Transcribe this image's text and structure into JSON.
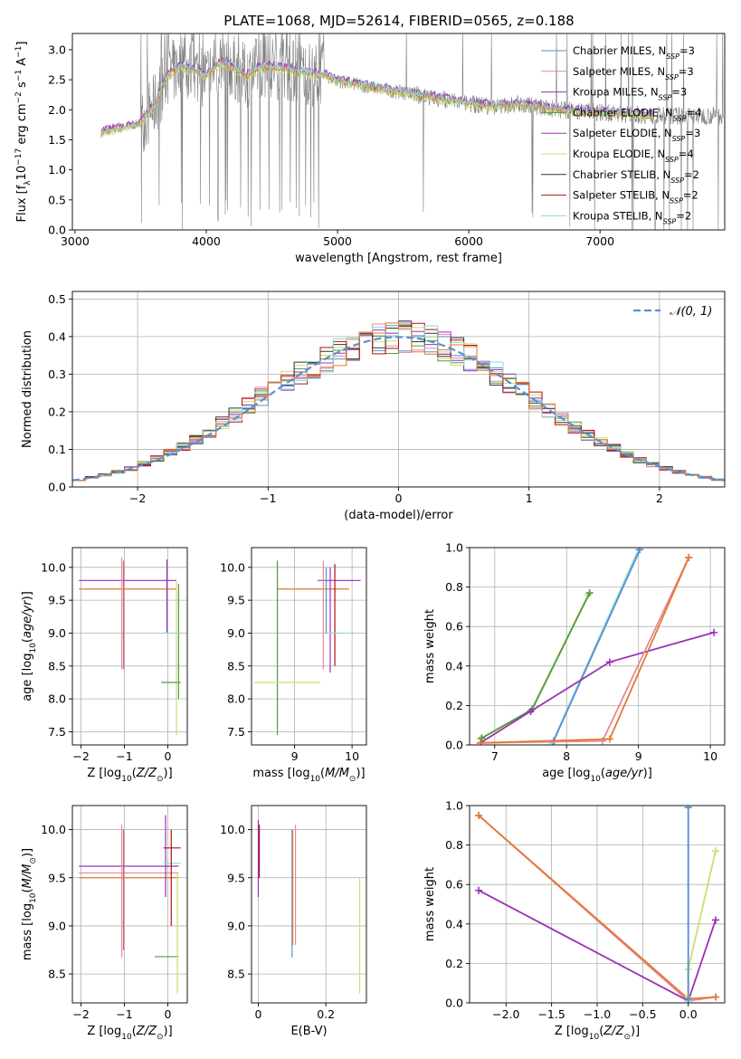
{
  "figure_title": "PLATE=1068, MJD=52614, FIBERID=0565, z=0.188",
  "colors": {
    "chabrier_miles": "#5b8fd1",
    "salpeter_miles": "#e8889a",
    "kroupa_miles": "#9b30b8",
    "chabrier_elodie": "#4f9a46",
    "salpeter_elodie": "#9b30b8",
    "kroupa_elodie": "#c8e070",
    "chabrier_stelib": "#333333",
    "salpeter_stelib": "#b01010",
    "kroupa_stelib": "#8fd8d8",
    "data": "#808080",
    "orange": "#e07a30"
  },
  "chart_data": [
    {
      "id": "spectrum",
      "type": "line",
      "title": "PLATE=1068, MJD=52614, FIBERID=0565, z=0.188",
      "xlabel": "wavelength [Angstrom, rest frame]",
      "ylabel": "Flux [f_λ 10^-17 erg cm^-2 s^-1 A^-1]",
      "ylabel_parts": {
        "a": "Flux [f",
        "sub": "λ",
        "b": "10",
        "sup1": "−17",
        "c": " erg cm",
        "sup2": "−2",
        "d": " s",
        "sup3": "−1",
        "e": " A",
        "sup4": "−1",
        "f": "]"
      },
      "xlim": [
        2980,
        7950
      ],
      "ylim": [
        0.0,
        3.27
      ],
      "xticks": [
        3000,
        4000,
        5000,
        6000,
        7000
      ],
      "yticks": [
        0.0,
        0.5,
        1.0,
        1.5,
        2.0,
        2.5,
        3.0
      ],
      "legend_position": "upper-right",
      "legend": [
        {
          "label": "Chabrier MILES, N",
          "sub": "SSP",
          "eq": "=3",
          "color": "#5b8fd1"
        },
        {
          "label": "Salpeter MILES, N",
          "sub": "SSP",
          "eq": "=3",
          "color": "#e8889a"
        },
        {
          "label": "Kroupa MILES, N",
          "sub": "SSP",
          "eq": "=3",
          "color": "#9b30b8"
        },
        {
          "label": "Chabrier ELODIE, N",
          "sub": "SSP",
          "eq": "=4",
          "color": "#4f9a46"
        },
        {
          "label": "Salpeter ELODIE, N",
          "sub": "SSP",
          "eq": "=3",
          "color": "#9b30b8"
        },
        {
          "label": "Kroupa ELODIE, N",
          "sub": "SSP",
          "eq": "=4",
          "color": "#c8e070"
        },
        {
          "label": "Chabrier STELIB, N",
          "sub": "SSP",
          "eq": "=2",
          "color": "#333333"
        },
        {
          "label": "Salpeter STELIB, N",
          "sub": "SSP",
          "eq": "=2",
          "color": "#b01010"
        },
        {
          "label": "Kroupa STELIB, N",
          "sub": "SSP",
          "eq": "=2",
          "color": "#8fd8d8"
        }
      ],
      "model_continuum": [
        [
          3200,
          1.62
        ],
        [
          3300,
          1.68
        ],
        [
          3400,
          1.72
        ],
        [
          3500,
          1.78
        ],
        [
          3600,
          2.05
        ],
        [
          3700,
          2.55
        ],
        [
          3800,
          2.72
        ],
        [
          3900,
          2.65
        ],
        [
          4000,
          2.55
        ],
        [
          4100,
          2.78
        ],
        [
          4200,
          2.72
        ],
        [
          4300,
          2.55
        ],
        [
          4400,
          2.7
        ],
        [
          4500,
          2.72
        ],
        [
          4600,
          2.68
        ],
        [
          4700,
          2.62
        ],
        [
          4800,
          2.6
        ],
        [
          4900,
          2.58
        ],
        [
          5000,
          2.48
        ],
        [
          5200,
          2.4
        ],
        [
          5400,
          2.32
        ],
        [
          5600,
          2.25
        ],
        [
          5800,
          2.18
        ],
        [
          6000,
          2.1
        ],
        [
          6200,
          2.05
        ],
        [
          6400,
          2.1
        ],
        [
          6600,
          2.02
        ],
        [
          6800,
          1.98
        ],
        [
          7000,
          1.95
        ],
        [
          7200,
          1.93
        ],
        [
          7400,
          1.9
        ]
      ]
    },
    {
      "id": "residuals",
      "type": "histogram",
      "xlabel": "(data-model)/error",
      "ylabel": "Normed distribution",
      "xlim": [
        -2.5,
        2.5
      ],
      "ylim": [
        0.0,
        0.52
      ],
      "xticks": [
        -2,
        -1,
        0,
        1,
        2
      ],
      "yticks": [
        0.0,
        0.1,
        0.2,
        0.3,
        0.4,
        0.5
      ],
      "legend": [
        {
          "label": "𝒩(0, 1)",
          "color": "#5b8fd1",
          "style": "dashed"
        }
      ],
      "legend_position": "upper-right",
      "bin_width": 0.1
    },
    {
      "id": "age-vs-Z",
      "type": "errorbar",
      "xlabel": "Z [log10(Z/Z⊙)]",
      "ylabel": "age [log10(age/yr)]",
      "xlim": [
        -2.2,
        0.45
      ],
      "ylim": [
        7.3,
        10.3
      ],
      "xticks": [
        -2,
        -1,
        0
      ],
      "yticks": [
        7.5,
        8.0,
        8.5,
        9.0,
        9.5,
        10.0
      ],
      "items": [
        {
          "x": 0.02,
          "xerr": [
            0.1,
            0.1
          ],
          "y": 9.8,
          "yerr": [
            0.0,
            0.0
          ],
          "hx": [
            -2.05,
            0.2
          ],
          "color": "#9b30b8"
        },
        {
          "x": 0.02,
          "xerr": [
            0.1,
            0.1
          ],
          "y": 9.67,
          "yerr": [
            0.0,
            0.0
          ],
          "hx": [
            -2.05,
            0.2
          ],
          "color": "#e07a30"
        },
        {
          "x": -1.06,
          "y": 9.3,
          "vy": [
            8.45,
            10.15
          ],
          "color": "#e8889a"
        },
        {
          "x": -1.02,
          "y": 9.3,
          "vy": [
            8.45,
            10.1
          ],
          "color": "#d06070"
        },
        {
          "x": -0.02,
          "y": 9.6,
          "vy": [
            9.0,
            10.12
          ],
          "color": "#9b30b8"
        },
        {
          "x": 0.2,
          "y": 8.8,
          "vy": [
            7.45,
            9.78
          ],
          "color": "#c8e070"
        },
        {
          "x": 0.25,
          "y": 9.0,
          "vy": [
            8.0,
            9.75
          ],
          "color": "#4f9a46"
        },
        {
          "x": 0.1,
          "y": 9.0,
          "hx": [
            -0.12,
            0.3
          ],
          "color": "#8fd8d8"
        },
        {
          "x": 0.1,
          "y": 8.25,
          "hx": [
            -0.15,
            0.3
          ],
          "color": "#4f9a46"
        }
      ]
    },
    {
      "id": "age-vs-mass",
      "type": "errorbar",
      "xlabel": "mass [log10(M/M⊙)]",
      "ylabel": "",
      "xlim": [
        8.25,
        10.25
      ],
      "ylim": [
        7.3,
        10.3
      ],
      "xticks": [
        9,
        10
      ],
      "yticks": [
        7.5,
        8.0,
        8.5,
        9.0,
        9.5,
        10.0
      ],
      "items": [
        {
          "x": 9.7,
          "y": 9.8,
          "hx": [
            9.4,
            10.15
          ],
          "color": "#9b30b8"
        },
        {
          "x": 9.6,
          "y": 9.67,
          "hx": [
            8.7,
            9.95
          ],
          "color": "#e07a30"
        },
        {
          "x": 8.7,
          "y": 8.8,
          "vy": [
            7.45,
            10.1
          ],
          "color": "#4f9a46"
        },
        {
          "x": 9.0,
          "y": 8.25,
          "hx": [
            8.3,
            9.45
          ],
          "color": "#c8e070"
        },
        {
          "x": 9.5,
          "y": 9.2,
          "vy": [
            8.45,
            10.1
          ],
          "color": "#e8889a"
        },
        {
          "x": 9.7,
          "y": 9.4,
          "vy": [
            8.5,
            10.05
          ],
          "color": "#b01010"
        },
        {
          "x": 9.62,
          "y": 9.3,
          "vy": [
            8.4,
            10.0
          ],
          "color": "#9b30b8"
        },
        {
          "x": 9.8,
          "y": 9.0,
          "hx": [
            9.55,
            10.05
          ],
          "color": "#8fd8d8"
        },
        {
          "x": 9.55,
          "y": 9.5,
          "vy": [
            9.0,
            10.0
          ],
          "color": "#5b8fd1"
        }
      ]
    },
    {
      "id": "weight-vs-age",
      "type": "line",
      "xlabel": "age [log10(age/yr)]",
      "ylabel": "mass weight",
      "xlim": [
        6.65,
        10.2
      ],
      "ylim": [
        0.0,
        1.0
      ],
      "xticks": [
        7,
        8,
        9,
        10
      ],
      "yticks": [
        0.0,
        0.2,
        0.4,
        0.6,
        0.8,
        1.0
      ],
      "series": [
        {
          "color": "#c8e070",
          "points": [
            [
              6.8,
              0.03
            ],
            [
              7.5,
              0.17
            ],
            [
              8.3,
              0.76
            ]
          ]
        },
        {
          "color": "#4f9a46",
          "points": [
            [
              6.82,
              0.035
            ],
            [
              7.52,
              0.18
            ],
            [
              8.32,
              0.77
            ]
          ]
        },
        {
          "color": "#8fd8d8",
          "points": [
            [
              7.8,
              0.01
            ],
            [
              9.0,
              0.99
            ]
          ]
        },
        {
          "color": "#5b8fd1",
          "points": [
            [
              7.82,
              0.02
            ],
            [
              9.02,
              0.99
            ]
          ]
        },
        {
          "color": "#9b30b8",
          "points": [
            [
              6.8,
              0.01
            ],
            [
              7.5,
              0.17
            ],
            [
              8.6,
              0.42
            ],
            [
              10.05,
              0.57
            ]
          ]
        },
        {
          "color": "#e8889a",
          "points": [
            [
              6.8,
              0.01
            ],
            [
              8.5,
              0.02
            ],
            [
              9.7,
              0.95
            ]
          ]
        },
        {
          "color": "#e07a30",
          "points": [
            [
              6.8,
              0.01
            ],
            [
              8.6,
              0.03
            ],
            [
              9.7,
              0.95
            ]
          ]
        }
      ]
    },
    {
      "id": "mass-vs-Z",
      "type": "errorbar",
      "xlabel": "Z [log10(Z/Z⊙)]",
      "ylabel": "mass [log10(M/M⊙)]",
      "xlim": [
        -2.2,
        0.45
      ],
      "ylim": [
        8.2,
        10.25
      ],
      "xticks": [
        -2,
        -1,
        0
      ],
      "yticks": [
        8.5,
        9.0,
        9.5,
        10.0
      ],
      "items": [
        {
          "x": 0.0,
          "y": 9.62,
          "hx": [
            -2.05,
            0.25
          ],
          "color": "#9b30b8"
        },
        {
          "x": 0.0,
          "y": 9.55,
          "hx": [
            -2.05,
            0.25
          ],
          "color": "#e8889a"
        },
        {
          "x": 0.0,
          "y": 9.5,
          "hx": [
            -2.05,
            0.25
          ],
          "color": "#e07a30"
        },
        {
          "x": -1.06,
          "y": 9.4,
          "vy": [
            8.67,
            10.05
          ],
          "color": "#e8889a"
        },
        {
          "x": -1.02,
          "y": 9.4,
          "vy": [
            8.75,
            10.0
          ],
          "color": "#d06070"
        },
        {
          "x": -0.05,
          "y": 9.6,
          "vy": [
            9.3,
            10.15
          ],
          "color": "#9b30b8"
        },
        {
          "x": 0.08,
          "y": 9.81,
          "hx": [
            -0.1,
            0.3
          ],
          "color": "#b01010"
        },
        {
          "x": 0.1,
          "y": 9.65,
          "hx": [
            -0.1,
            0.3
          ],
          "color": "#8fd8d8"
        },
        {
          "x": 0.1,
          "y": 8.68,
          "hx": [
            -0.3,
            0.25
          ],
          "color": "#4f9a46"
        },
        {
          "x": 0.22,
          "y": 9.0,
          "vy": [
            8.3,
            9.55
          ],
          "color": "#c8e070"
        },
        {
          "x": 0.08,
          "y": 9.5,
          "vy": [
            9.0,
            10.0
          ],
          "color": "#b01010"
        }
      ]
    },
    {
      "id": "mass-vs-EBV",
      "type": "errorbar",
      "xlabel": "E(B-V)",
      "ylabel": "",
      "xlim": [
        -0.02,
        0.32
      ],
      "ylim": [
        8.2,
        10.25
      ],
      "xticks": [
        0.0,
        0.2
      ],
      "yticks": [
        8.5,
        9.0,
        9.5,
        10.0
      ],
      "items": [
        {
          "x": 0.0,
          "y": 9.7,
          "vy": [
            9.3,
            10.1
          ],
          "color": "#9b30b8"
        },
        {
          "x": 0.003,
          "y": 9.8,
          "vy": [
            9.5,
            10.05
          ],
          "color": "#b01010"
        },
        {
          "x": 0.1,
          "y": 9.3,
          "vy": [
            8.67,
            10.0
          ],
          "color": "#5b8fd1"
        },
        {
          "x": 0.102,
          "y": 9.3,
          "vy": [
            8.8,
            10.0
          ],
          "color": "#e07a30"
        },
        {
          "x": 0.11,
          "y": 9.4,
          "vy": [
            8.8,
            10.05
          ],
          "color": "#e8889a"
        },
        {
          "x": 0.3,
          "y": 8.9,
          "vy": [
            8.3,
            9.5
          ],
          "color": "#c8e070"
        }
      ]
    },
    {
      "id": "weight-vs-Z",
      "type": "line",
      "xlabel": "Z [log10(Z/Z⊙)]",
      "ylabel": "mass weight",
      "xlim": [
        -2.4,
        0.4
      ],
      "ylim": [
        0.0,
        1.0
      ],
      "xticks": [
        -2.0,
        -1.5,
        -1.0,
        -0.5,
        0.0
      ],
      "xtick_labels": [
        "−2.0",
        "−1.5",
        "−1.0",
        "−0.5",
        "0.0"
      ],
      "yticks": [
        0.0,
        0.2,
        0.4,
        0.6,
        0.8,
        1.0
      ],
      "series": [
        {
          "color": "#e8889a",
          "points": [
            [
              -2.3,
              0.95
            ],
            [
              0.0,
              0.01
            ],
            [
              0.3,
              0.03
            ]
          ]
        },
        {
          "color": "#e07a30",
          "points": [
            [
              -2.3,
              0.95
            ],
            [
              0.0,
              0.02
            ],
            [
              0.3,
              0.03
            ]
          ]
        },
        {
          "color": "#9b30b8",
          "points": [
            [
              -2.3,
              0.57
            ],
            [
              0.0,
              0.01
            ],
            [
              0.3,
              0.42
            ]
          ]
        },
        {
          "color": "#c8e070",
          "points": [
            [
              0.0,
              0.03
            ],
            [
              0.0,
              0.17
            ],
            [
              0.3,
              0.77
            ]
          ]
        },
        {
          "color": "#8fd8d8",
          "points": [
            [
              0.0,
              0.01
            ],
            [
              0.0,
              0.99
            ]
          ]
        },
        {
          "color": "#5b8fd1",
          "points": [
            [
              0.0,
              0.02
            ],
            [
              0.0,
              0.99
            ]
          ]
        }
      ]
    }
  ]
}
